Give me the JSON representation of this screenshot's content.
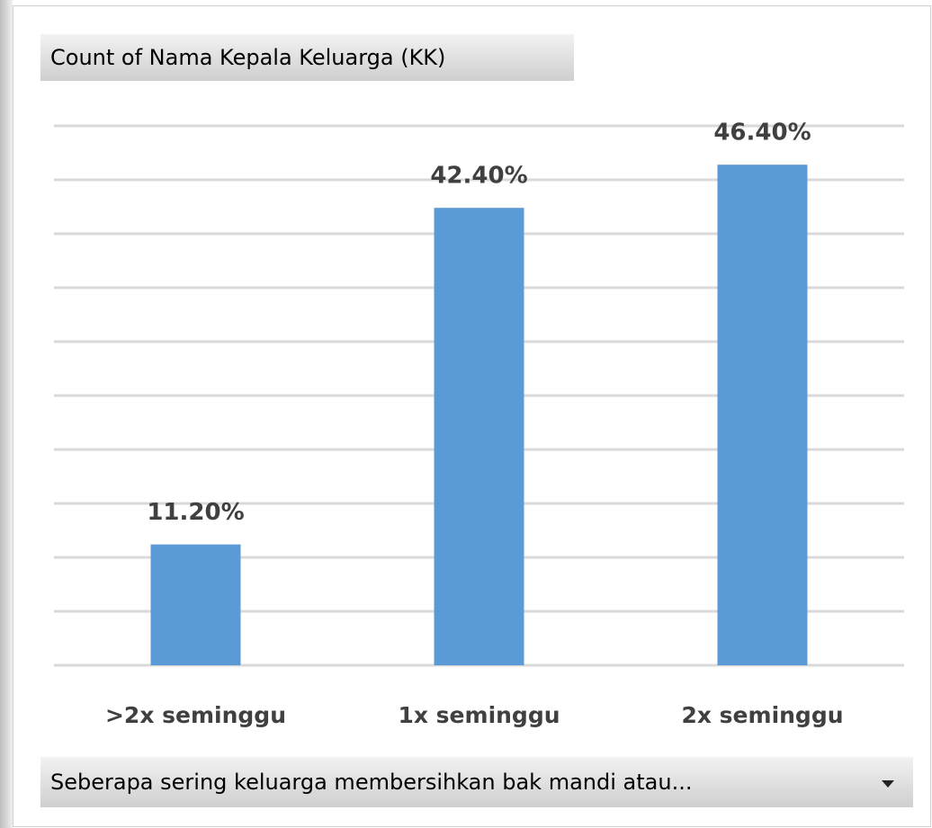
{
  "chart_data": {
    "type": "bar",
    "value_field": "Count of Nama Kepala Keluarga (KK)",
    "axis_field": "Seberapa sering keluarga membersihkan bak mandi atau...",
    "categories": [
      ">2x seminggu",
      "1x seminggu",
      "2x seminggu"
    ],
    "values": [
      11.2,
      42.4,
      46.4
    ],
    "value_labels": [
      "11.20%",
      "42.40%",
      "46.40%"
    ],
    "color": "#5b9bd5",
    "ylim": [
      0,
      50
    ],
    "yticks": [
      0,
      5,
      10,
      15,
      20,
      25,
      30,
      35,
      40,
      45,
      50
    ],
    "grid": true
  }
}
